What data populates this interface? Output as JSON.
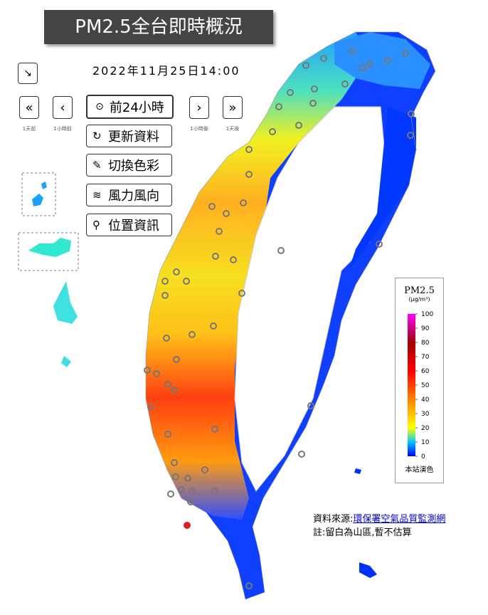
{
  "header": {
    "title": "PM2.5全台即時概況",
    "datetime": "2022年11月25日14:00"
  },
  "controls": {
    "expand": "↘",
    "day_back": "«",
    "hour_back": "‹",
    "play": "前24小時",
    "hour_fwd": "›",
    "day_fwd": "»",
    "day_back_label": "1天前",
    "hour_back_label": "1小時前",
    "hour_fwd_label": "1小時後",
    "day_fwd_label": "1天後",
    "refresh": "更新資料",
    "color": "切換色彩",
    "wind": "風力風向",
    "location": "位置資訊"
  },
  "legend": {
    "title": "PM2.5",
    "unit": "(μg/m³)",
    "ticks": [
      0,
      10,
      20,
      30,
      40,
      50,
      60,
      70,
      80,
      90,
      100
    ],
    "footer": "本站演色"
  },
  "footer": {
    "source_label": "資料來源:",
    "source_link": "環保署空氣品質監測網",
    "note": "註:留白為山區,暫不估算"
  }
}
